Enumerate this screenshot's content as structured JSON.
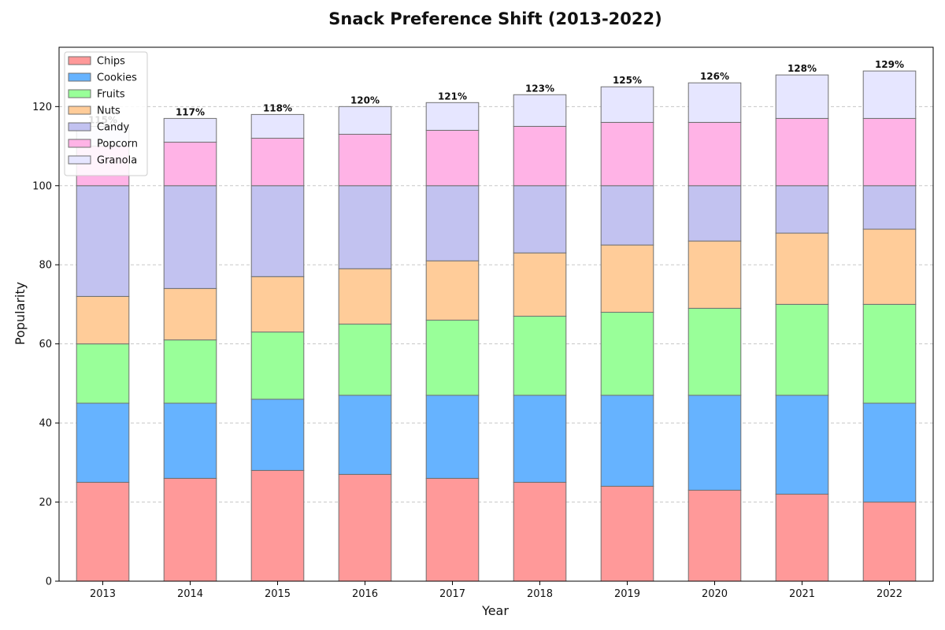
{
  "chart_data": {
    "type": "bar",
    "stacked": true,
    "title": "Snack Preference Shift (2013-2022)",
    "xlabel": "Year",
    "ylabel": "Popularity",
    "ylim": [
      0,
      135
    ],
    "yticks": [
      0,
      20,
      40,
      60,
      80,
      100,
      120
    ],
    "grid": true,
    "legend_position": "top-left",
    "categories": [
      "2013",
      "2014",
      "2015",
      "2016",
      "2017",
      "2018",
      "2019",
      "2020",
      "2021",
      "2022"
    ],
    "series": [
      {
        "name": "Chips",
        "color": "#ff9999",
        "values": [
          25,
          26,
          28,
          27,
          26,
          25,
          24,
          23,
          22,
          20
        ]
      },
      {
        "name": "Cookies",
        "color": "#66b3ff",
        "values": [
          20,
          19,
          18,
          20,
          21,
          22,
          23,
          24,
          25,
          25
        ]
      },
      {
        "name": "Fruits",
        "color": "#99ff99",
        "values": [
          15,
          16,
          17,
          18,
          19,
          20,
          21,
          22,
          23,
          25
        ]
      },
      {
        "name": "Nuts",
        "color": "#ffcc99",
        "values": [
          12,
          13,
          14,
          14,
          15,
          16,
          17,
          17,
          18,
          19
        ]
      },
      {
        "name": "Candy",
        "color": "#c2c2f0",
        "values": [
          28,
          26,
          23,
          21,
          19,
          17,
          15,
          14,
          12,
          11
        ]
      },
      {
        "name": "Popcorn",
        "color": "#ffb3e6",
        "values": [
          10,
          11,
          12,
          13,
          14,
          15,
          16,
          16,
          17,
          17
        ]
      },
      {
        "name": "Granola",
        "color": "#e6e6ff",
        "values": [
          5,
          6,
          6,
          7,
          7,
          8,
          9,
          10,
          11,
          12
        ]
      }
    ],
    "totals": [
      "115%",
      "117%",
      "118%",
      "120%",
      "121%",
      "123%",
      "125%",
      "126%",
      "128%",
      "129%"
    ]
  }
}
